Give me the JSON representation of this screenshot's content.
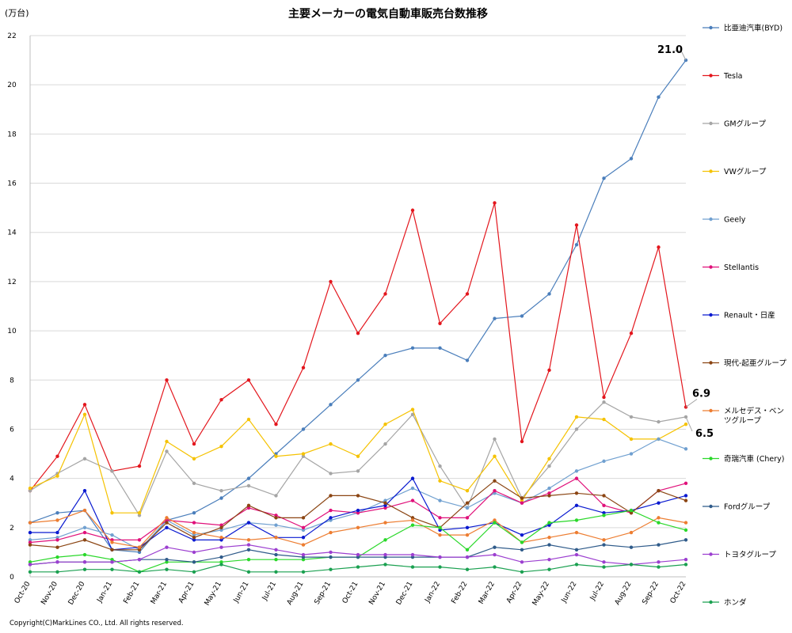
{
  "chart_data": {
    "type": "line",
    "title": "主要メーカーの電気自動車販売台数推移",
    "unit_label": "(万台)",
    "copyright": "Copyright(C)MarkLines CO., Ltd. All rights reserved.",
    "ylim": [
      0,
      22
    ],
    "yticks": [
      0,
      2,
      4,
      6,
      8,
      10,
      12,
      14,
      16,
      18,
      20,
      22
    ],
    "grid": "horizontal",
    "legend_position": "right",
    "x": [
      "Oct-20",
      "Nov-20",
      "Dec-20",
      "Jan-21",
      "Feb-21",
      "Mar-21",
      "Apr-21",
      "May-21",
      "Jun-21",
      "Jul-21",
      "Aug-21",
      "Sep-21",
      "Oct-21",
      "Nov-21",
      "Dec-21",
      "Jan-22",
      "Feb-22",
      "Mar-22",
      "Apr-22",
      "May-22",
      "Jun-22",
      "Jul-22",
      "Aug-22",
      "Sep-22",
      "Oct-22"
    ],
    "series": [
      {
        "name": "比亜迪汽車(BYD)",
        "color": "#4a7ebb",
        "values": [
          2.2,
          2.6,
          2.7,
          1.1,
          1.0,
          2.3,
          2.6,
          3.2,
          4.0,
          5.0,
          6.0,
          7.0,
          8.0,
          9.0,
          9.3,
          9.3,
          8.8,
          10.5,
          10.6,
          11.5,
          13.5,
          16.2,
          17.0,
          19.5,
          21.0
        ]
      },
      {
        "name": "Tesla",
        "color": "#e3161d",
        "values": [
          3.5,
          4.9,
          7.0,
          4.3,
          4.5,
          8.0,
          5.4,
          7.2,
          8.0,
          6.2,
          8.5,
          12.0,
          9.9,
          11.5,
          14.9,
          10.3,
          11.5,
          15.2,
          5.5,
          8.4,
          14.3,
          7.3,
          9.9,
          13.4,
          6.9
        ]
      },
      {
        "name": "GMグループ",
        "color": "#a5a5a5",
        "values": [
          3.5,
          4.2,
          4.8,
          4.3,
          2.5,
          5.1,
          3.8,
          3.5,
          3.7,
          3.3,
          4.9,
          4.2,
          4.3,
          5.4,
          6.6,
          4.5,
          2.8,
          5.6,
          3.2,
          4.5,
          6.0,
          7.1,
          6.5,
          6.3,
          6.5
        ]
      },
      {
        "name": "VWグループ",
        "color": "#f5c200",
        "values": [
          3.6,
          4.1,
          6.6,
          2.6,
          2.6,
          5.5,
          4.8,
          5.3,
          6.4,
          4.9,
          5.0,
          5.4,
          4.9,
          6.2,
          6.8,
          3.9,
          3.5,
          4.9,
          3.1,
          4.8,
          6.5,
          6.4,
          5.6,
          5.6,
          6.2
        ]
      },
      {
        "name": "Geely",
        "color": "#70a0d0",
        "values": [
          1.5,
          1.6,
          2.0,
          1.7,
          1.1,
          2.3,
          1.7,
          1.9,
          2.2,
          2.1,
          1.9,
          2.3,
          2.6,
          3.1,
          3.6,
          3.1,
          2.8,
          3.4,
          3.0,
          3.6,
          4.3,
          4.7,
          5.0,
          5.6,
          5.2
        ]
      },
      {
        "name": "Stellantis",
        "color": "#e0107a",
        "values": [
          1.4,
          1.5,
          1.8,
          1.5,
          1.5,
          2.3,
          2.2,
          2.1,
          2.8,
          2.5,
          2.0,
          2.7,
          2.6,
          2.8,
          3.1,
          2.4,
          2.4,
          3.5,
          3.0,
          3.4,
          4.0,
          2.9,
          2.6,
          3.5,
          3.8
        ]
      },
      {
        "name": "Renault・日産",
        "color": "#0a1ad0",
        "values": [
          1.8,
          1.8,
          3.5,
          1.1,
          1.2,
          2.0,
          1.5,
          1.5,
          2.2,
          1.6,
          1.6,
          2.4,
          2.7,
          2.9,
          4.0,
          1.9,
          2.0,
          2.2,
          1.7,
          2.1,
          2.9,
          2.6,
          2.7,
          3.0,
          3.3
        ]
      },
      {
        "name": "現代-起亜グループ",
        "color": "#8b4513",
        "values": [
          1.3,
          1.2,
          1.5,
          1.1,
          1.1,
          2.2,
          1.6,
          2.0,
          2.9,
          2.4,
          2.4,
          3.3,
          3.3,
          3.0,
          2.4,
          2.0,
          3.0,
          3.9,
          3.2,
          3.3,
          3.4,
          3.3,
          2.6,
          3.5,
          3.1
        ]
      },
      {
        "name": "メルセデス・ベンツグループ",
        "color": "#ed7d31",
        "values": [
          2.2,
          2.3,
          2.7,
          1.4,
          1.2,
          2.4,
          1.8,
          1.6,
          1.5,
          1.6,
          1.3,
          1.8,
          2.0,
          2.2,
          2.3,
          1.7,
          1.7,
          2.3,
          1.4,
          1.6,
          1.8,
          1.5,
          1.8,
          2.4,
          2.2
        ]
      },
      {
        "name": "奇瑞汽車 (Chery)",
        "color": "#2ad82a",
        "values": [
          0.6,
          0.8,
          0.9,
          0.7,
          0.2,
          0.6,
          0.6,
          0.6,
          0.7,
          0.7,
          0.7,
          0.8,
          0.8,
          1.5,
          2.1,
          2.0,
          1.1,
          2.2,
          1.4,
          2.2,
          2.3,
          2.5,
          2.7,
          2.2,
          1.9
        ]
      },
      {
        "name": "Fordグループ",
        "color": "#2f5b8a",
        "values": [
          0.5,
          0.6,
          0.6,
          0.6,
          0.7,
          0.7,
          0.6,
          0.8,
          1.1,
          0.9,
          0.8,
          0.8,
          0.8,
          0.8,
          0.8,
          0.8,
          0.8,
          1.2,
          1.1,
          1.3,
          1.1,
          1.3,
          1.2,
          1.3,
          1.5
        ]
      },
      {
        "name": "トヨタグループ",
        "color": "#9c3fd0",
        "values": [
          0.5,
          0.6,
          0.6,
          0.6,
          0.7,
          1.2,
          1.0,
          1.2,
          1.3,
          1.1,
          0.9,
          1.0,
          0.9,
          0.9,
          0.9,
          0.8,
          0.8,
          0.9,
          0.6,
          0.7,
          0.9,
          0.6,
          0.5,
          0.6,
          0.7
        ]
      },
      {
        "name": "ホンダ",
        "color": "#1aa050",
        "values": [
          0.2,
          0.2,
          0.3,
          0.3,
          0.2,
          0.3,
          0.2,
          0.5,
          0.2,
          0.2,
          0.2,
          0.3,
          0.4,
          0.5,
          0.4,
          0.4,
          0.3,
          0.4,
          0.2,
          0.3,
          0.5,
          0.4,
          0.5,
          0.4,
          0.5
        ]
      }
    ],
    "annotations": [
      {
        "text": "21.0",
        "series": "比亜迪汽車(BYD)",
        "x": "Oct-22",
        "y": 21.0
      },
      {
        "text": "6.9",
        "series": "Tesla",
        "x": "Oct-22",
        "y": 6.9
      },
      {
        "text": "6.5",
        "series": "GMグループ",
        "x": "Oct-22",
        "y": 6.5
      }
    ]
  }
}
